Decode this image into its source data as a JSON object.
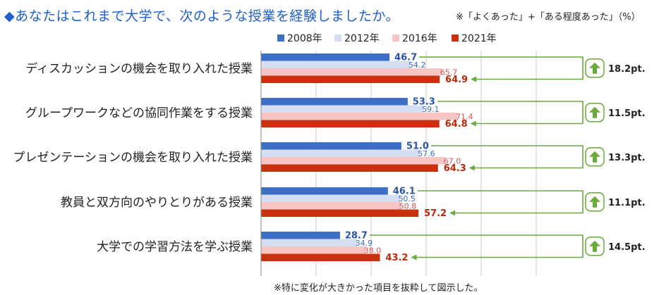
{
  "header": {
    "title": "◆あなたはこれまで大学で、次のような授業を経験しましたか。",
    "note": "※「よくあった」+「ある程度あった」（%）"
  },
  "footer": {
    "note": "※特に変化が大きかった項目を抜粋して図示した。"
  },
  "colors": {
    "s2008": "#3d6fc7",
    "s2012": "#d6def2",
    "s2016": "#f8c4c4",
    "s2021": "#c9300e",
    "label2008": "#2a55a8",
    "label2012": "#3d6fc7",
    "label2016": "#d9534f",
    "label2021": "#b8290b",
    "arrow": "#6aaa3a",
    "grid": "#c8c8c8"
  },
  "chart_data": {
    "type": "bar",
    "orientation": "horizontal",
    "title": "あなたはこれまで大学で、次のような授業を経験しましたか。",
    "xlim": [
      0,
      100
    ],
    "grid": true,
    "legend_position": "top",
    "categories": [
      "ディスカッションの機会を取り入れた授業",
      "グループワークなどの協同作業をする授業",
      "プレゼンテーションの機会を取り入れた授業",
      "教員と双方向のやりとりがある授業",
      "大学での学習方法を学ぶ授業"
    ],
    "series": [
      {
        "name": "2008年",
        "values": [
          46.7,
          53.3,
          51.0,
          46.1,
          28.7
        ],
        "labels": [
          "46.7",
          "53.3",
          "51.0",
          "46.1",
          "28.7"
        ]
      },
      {
        "name": "2012年",
        "values": [
          54.2,
          59.1,
          57.6,
          50.5,
          34.9
        ],
        "labels": [
          "54.2",
          "59.1",
          "57.6",
          "50.5",
          "34.9"
        ]
      },
      {
        "name": "2016年",
        "values": [
          65.7,
          71.4,
          67.0,
          50.8,
          38.0
        ],
        "labels": [
          "65.7",
          "71.4",
          "67.0",
          "50.8",
          "38.0"
        ]
      },
      {
        "name": "2021年",
        "values": [
          64.9,
          64.8,
          64.3,
          57.2,
          43.2
        ],
        "labels": [
          "64.9",
          "64.8",
          "64.3",
          "57.2",
          "43.2"
        ]
      }
    ],
    "annotations": [
      "18.2pt.",
      "11.5pt.",
      "13.3pt.",
      "11.1pt.",
      "14.5pt."
    ]
  }
}
